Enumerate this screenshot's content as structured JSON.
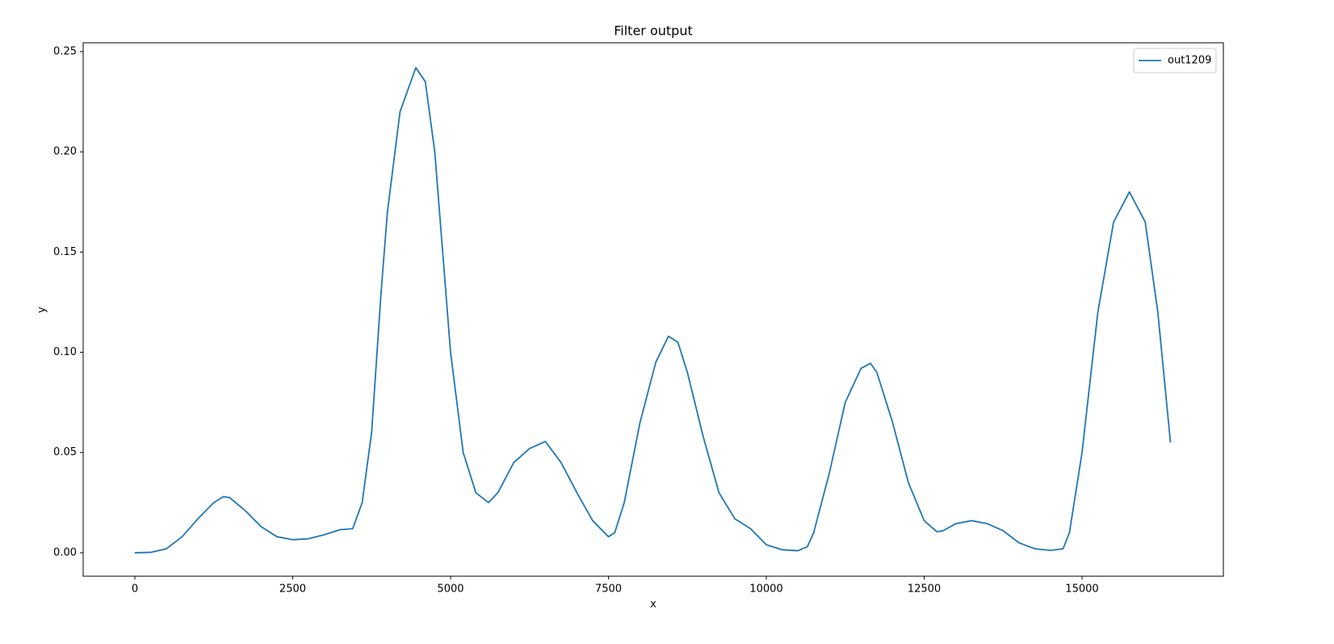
{
  "chart_data": {
    "type": "line",
    "title": "Filter output",
    "x_label": "x",
    "y_label": "y",
    "x": [
      0,
      250,
      500,
      750,
      1000,
      1250,
      1400,
      1500,
      1750,
      2000,
      2250,
      2500,
      2750,
      3000,
      3250,
      3450,
      3600,
      3750,
      3900,
      4000,
      4200,
      4450,
      4600,
      4750,
      4900,
      5000,
      5200,
      5400,
      5600,
      5750,
      6000,
      6250,
      6500,
      6750,
      7000,
      7250,
      7500,
      7600,
      7750,
      8000,
      8250,
      8450,
      8600,
      8750,
      9000,
      9250,
      9500,
      9750,
      10000,
      10250,
      10500,
      10650,
      10750,
      11000,
      11250,
      11500,
      11650,
      11750,
      12000,
      12250,
      12500,
      12700,
      12800,
      13000,
      13250,
      13500,
      13750,
      14000,
      14250,
      14500,
      14700,
      14800,
      15000,
      15250,
      15500,
      15750,
      16000,
      16200,
      16400
    ],
    "series": [
      {
        "name": "out1209",
        "color": "#1f77b4",
        "values": [
          0.0,
          0.0002,
          0.002,
          0.008,
          0.017,
          0.025,
          0.028,
          0.0275,
          0.021,
          0.013,
          0.008,
          0.0065,
          0.007,
          0.009,
          0.0115,
          0.012,
          0.025,
          0.06,
          0.13,
          0.17,
          0.22,
          0.242,
          0.235,
          0.2,
          0.14,
          0.1,
          0.05,
          0.03,
          0.025,
          0.03,
          0.045,
          0.052,
          0.0555,
          0.045,
          0.03,
          0.016,
          0.008,
          0.01,
          0.025,
          0.065,
          0.095,
          0.108,
          0.105,
          0.09,
          0.058,
          0.03,
          0.017,
          0.012,
          0.004,
          0.0015,
          0.001,
          0.003,
          0.01,
          0.04,
          0.075,
          0.092,
          0.0945,
          0.09,
          0.065,
          0.035,
          0.016,
          0.0105,
          0.011,
          0.0145,
          0.016,
          0.0145,
          0.011,
          0.005,
          0.002,
          0.0012,
          0.002,
          0.01,
          0.05,
          0.12,
          0.165,
          0.18,
          0.165,
          0.12,
          0.055
        ]
      }
    ],
    "xlim": [
      -818,
      17238
    ],
    "ylim": [
      -0.0117,
      0.2544
    ],
    "xticks": [
      0,
      2500,
      5000,
      7500,
      10000,
      12500,
      15000
    ],
    "yticks": [
      {
        "value": 0,
        "label": "0.00"
      },
      0.05,
      {
        "value": 0.1,
        "label": "0.10"
      },
      0.15,
      {
        "value": 0.2,
        "label": "0.20"
      },
      0.25
    ],
    "legend": "upper right"
  }
}
